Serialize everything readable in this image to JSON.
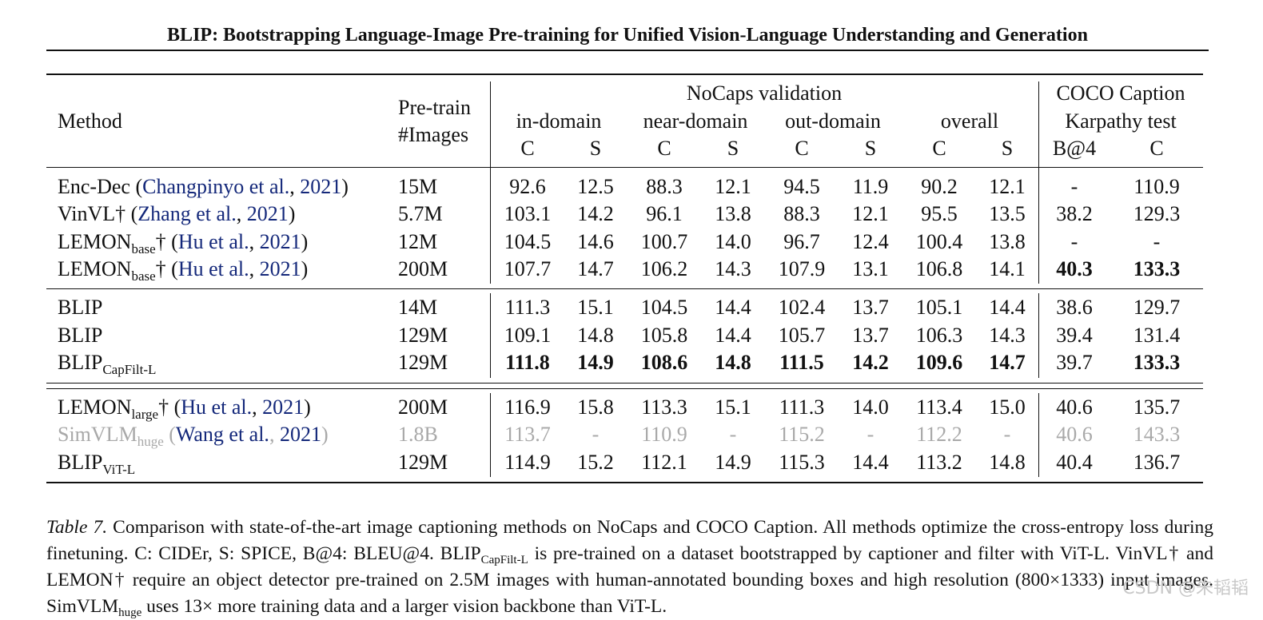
{
  "running_title": "BLIP: Bootstrapping Language-Image Pre-training for Unified Vision-Language Understanding and Generation",
  "table": {
    "header": {
      "method": "Method",
      "pretrain_line1": "Pre-train",
      "pretrain_line2": "#Images",
      "nocaps_group": "NoCaps validation",
      "coco_group_line1": "COCO Caption",
      "coco_group_line2": "Karpathy test",
      "subgroups": [
        "in-domain",
        "near-domain",
        "out-domain",
        "overall"
      ],
      "metrics": [
        "C",
        "S",
        "C",
        "S",
        "C",
        "S",
        "C",
        "S",
        "B@4",
        "C"
      ]
    },
    "rows": [
      {
        "name": "Enc-Dec",
        "sub": "",
        "dagger": "",
        "ref_pre": " (",
        "ref_authors": "Changpinyo et al.",
        "ref_sep": ", ",
        "ref_year": "2021",
        "ref_post": ")",
        "images": "15M",
        "values": [
          "92.6",
          "12.5",
          "88.3",
          "12.1",
          "94.5",
          "11.9",
          "90.2",
          "12.1",
          "-",
          "110.9"
        ],
        "bold": [
          false,
          false,
          false,
          false,
          false,
          false,
          false,
          false,
          false,
          false
        ],
        "gray": false
      },
      {
        "name": "VinVL",
        "sub": "",
        "dagger": "†",
        "ref_pre": " (",
        "ref_authors": "Zhang et al.",
        "ref_sep": ", ",
        "ref_year": "2021",
        "ref_post": ")",
        "images": "5.7M",
        "values": [
          "103.1",
          "14.2",
          "96.1",
          "13.8",
          "88.3",
          "12.1",
          "95.5",
          "13.5",
          "38.2",
          "129.3"
        ],
        "bold": [
          false,
          false,
          false,
          false,
          false,
          false,
          false,
          false,
          false,
          false
        ],
        "gray": false
      },
      {
        "name": "LEMON",
        "sub": "base",
        "dagger": "†",
        "ref_pre": " (",
        "ref_authors": "Hu et al.",
        "ref_sep": ", ",
        "ref_year": "2021",
        "ref_post": ")",
        "images": "12M",
        "values": [
          "104.5",
          "14.6",
          "100.7",
          "14.0",
          "96.7",
          "12.4",
          "100.4",
          "13.8",
          "-",
          "-"
        ],
        "bold": [
          false,
          false,
          false,
          false,
          false,
          false,
          false,
          false,
          false,
          false
        ],
        "gray": false
      },
      {
        "name": "LEMON",
        "sub": "base",
        "dagger": "†",
        "ref_pre": " (",
        "ref_authors": "Hu et al.",
        "ref_sep": ", ",
        "ref_year": "2021",
        "ref_post": ")",
        "images": "200M",
        "values": [
          "107.7",
          "14.7",
          "106.2",
          "14.3",
          "107.9",
          "13.1",
          "106.8",
          "14.1",
          "40.3",
          "133.3"
        ],
        "bold": [
          false,
          false,
          false,
          false,
          false,
          false,
          false,
          false,
          true,
          true
        ],
        "gray": false
      },
      {
        "name": "BLIP",
        "sub": "",
        "dagger": "",
        "ref_pre": "",
        "ref_authors": "",
        "ref_sep": "",
        "ref_year": "",
        "ref_post": "",
        "images": "14M",
        "values": [
          "111.3",
          "15.1",
          "104.5",
          "14.4",
          "102.4",
          "13.7",
          "105.1",
          "14.4",
          "38.6",
          "129.7"
        ],
        "bold": [
          false,
          false,
          false,
          false,
          false,
          false,
          false,
          false,
          false,
          false
        ],
        "gray": false
      },
      {
        "name": "BLIP",
        "sub": "",
        "dagger": "",
        "ref_pre": "",
        "ref_authors": "",
        "ref_sep": "",
        "ref_year": "",
        "ref_post": "",
        "images": "129M",
        "values": [
          "109.1",
          "14.8",
          "105.8",
          "14.4",
          "105.7",
          "13.7",
          "106.3",
          "14.3",
          "39.4",
          "131.4"
        ],
        "bold": [
          false,
          false,
          false,
          false,
          false,
          false,
          false,
          false,
          false,
          false
        ],
        "gray": false
      },
      {
        "name": "BLIP",
        "sub": "CapFilt-L",
        "dagger": "",
        "ref_pre": "",
        "ref_authors": "",
        "ref_sep": "",
        "ref_year": "",
        "ref_post": "",
        "images": "129M",
        "values": [
          "111.8",
          "14.9",
          "108.6",
          "14.8",
          "111.5",
          "14.2",
          "109.6",
          "14.7",
          "39.7",
          "133.3"
        ],
        "bold": [
          true,
          true,
          true,
          true,
          true,
          true,
          true,
          true,
          false,
          true
        ],
        "gray": false
      },
      {
        "name": "LEMON",
        "sub": "large",
        "dagger": "†",
        "ref_pre": " (",
        "ref_authors": "Hu et al.",
        "ref_sep": ", ",
        "ref_year": "2021",
        "ref_post": ")",
        "images": "200M",
        "values": [
          "116.9",
          "15.8",
          "113.3",
          "15.1",
          "111.3",
          "14.0",
          "113.4",
          "15.0",
          "40.6",
          "135.7"
        ],
        "bold": [
          false,
          false,
          false,
          false,
          false,
          false,
          false,
          false,
          false,
          false
        ],
        "gray": false
      },
      {
        "name": "SimVLM",
        "sub": "huge",
        "dagger": "",
        "ref_pre": " (",
        "ref_authors": "Wang et al.",
        "ref_sep": ", ",
        "ref_year": "2021",
        "ref_post": ")",
        "images": "1.8B",
        "values": [
          "113.7",
          "-",
          "110.9",
          "-",
          "115.2",
          "-",
          "112.2",
          "-",
          "40.6",
          "143.3"
        ],
        "bold": [
          false,
          false,
          false,
          false,
          false,
          false,
          false,
          false,
          false,
          false
        ],
        "gray": true
      },
      {
        "name": "BLIP",
        "sub": "ViT-L",
        "dagger": "",
        "ref_pre": "",
        "ref_authors": "",
        "ref_sep": "",
        "ref_year": "",
        "ref_post": "",
        "images": "129M",
        "values": [
          "114.9",
          "15.2",
          "112.1",
          "14.9",
          "115.3",
          "14.4",
          "113.2",
          "14.8",
          "40.4",
          "136.7"
        ],
        "bold": [
          false,
          false,
          false,
          false,
          false,
          false,
          false,
          false,
          false,
          false
        ],
        "gray": false
      }
    ]
  },
  "caption": {
    "label": "Table 7.",
    "text1": " Comparison with state-of-the-art image captioning methods on NoCaps and COCO Caption. All methods optimize the cross-entropy loss during finetuning. C: CIDEr, S: SPICE, B@4: BLEU@4. BLIP",
    "sub1": "CapFilt-L",
    "text2": " is pre-trained on a dataset bootstrapped by captioner and filter with ViT-L. VinVL† and LEMON† require an object detector pre-trained on 2.5M images with human-annotated bounding boxes and high resolution (800×1333) input images. SimVLM",
    "sub2": "huge",
    "text3": " uses 13× more training data and a larger vision backbone than ViT-L."
  },
  "watermark": "CSDN @朱韬韬"
}
